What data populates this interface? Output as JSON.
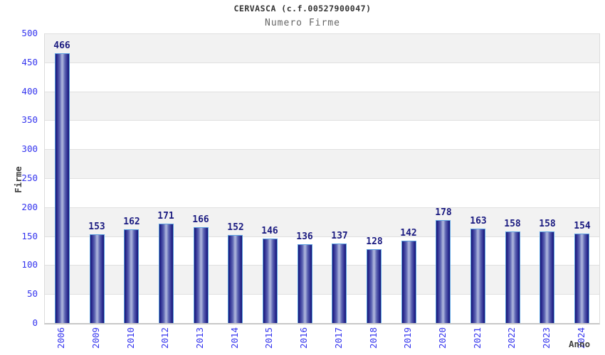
{
  "header": {
    "title": "CERVASCA (c.f.00527900047)",
    "subtitle": "Numero Firme"
  },
  "chart_data": {
    "type": "bar",
    "title": "CERVASCA (c.f.00527900047)",
    "subtitle": "Numero Firme",
    "xlabel": "Anno",
    "ylabel": "Firme",
    "categories": [
      "2006",
      "2009",
      "2010",
      "2012",
      "2013",
      "2014",
      "2015",
      "2016",
      "2017",
      "2018",
      "2019",
      "2020",
      "2021",
      "2022",
      "2023",
      "2024"
    ],
    "values": [
      466,
      153,
      162,
      171,
      166,
      152,
      146,
      136,
      137,
      128,
      142,
      178,
      163,
      158,
      158,
      154
    ],
    "ylim": [
      0,
      500
    ],
    "ytick_step": 50,
    "yticks": [
      0,
      50,
      100,
      150,
      200,
      250,
      300,
      350,
      400,
      450,
      500
    ],
    "grid": true,
    "legend": false,
    "band_pattern": "alternating horizontal bands of 50 units, gray on 50-100, 150-200, 250-300, 350-400, 450-500",
    "colors": {
      "tick_label": "#3333ee",
      "value_label": "#1a1a80",
      "bar_edge_dark": "#14146e",
      "bar_mid": "#2a2a90",
      "bar_inner": "#6068b4",
      "bar_center_light": "#a8b0da",
      "bar_border": "#5ba0e0",
      "band_gray": "#f2f2f2",
      "gridline": "#e0e0e0",
      "axis_border": "#c8c8c8",
      "title_color": "#333333",
      "subtitle_color": "#666666",
      "axis_label_color": "#404040"
    }
  }
}
